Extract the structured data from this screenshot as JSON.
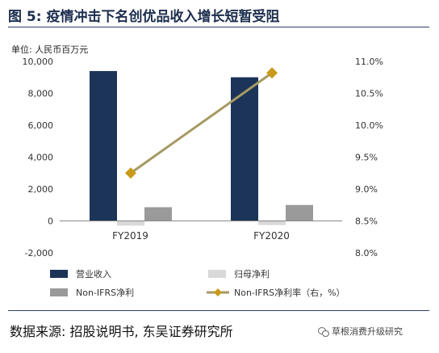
{
  "header": {
    "title": "图 5:  疫情冲击下名创优品收入增长短暂受阻",
    "unit": "单位:  人民币百万元"
  },
  "footer": {
    "source": "数据来源:  招股说明书,  东吴证券研究所",
    "watermark": "草根消费升级研究"
  },
  "colors": {
    "revenue": "#1c3458",
    "net_income": "#d9d9d9",
    "non_ifrs": "#9a9a9a",
    "margin_line": "#a69a63",
    "margin_marker": "#c99a1a",
    "axis": "#888888"
  },
  "chart_data": {
    "type": "bar",
    "categories": [
      "FY2019",
      "FY2020"
    ],
    "series": [
      {
        "name": "营业收入",
        "kind": "bar",
        "axis": "left",
        "values": [
          9395,
          9005
        ]
      },
      {
        "name": "归母净利",
        "kind": "bar",
        "axis": "left",
        "values": [
          -294,
          -260
        ]
      },
      {
        "name": "Non-IFRS净利",
        "kind": "bar",
        "axis": "left",
        "values": [
          860,
          1000
        ]
      },
      {
        "name": "Non-IFRS净利率（右，%）",
        "kind": "line",
        "axis": "right",
        "values": [
          9.25,
          10.82
        ]
      }
    ],
    "y_left": {
      "min": -2000,
      "max": 10000,
      "ticks": [
        -2000,
        0,
        2000,
        4000,
        6000,
        8000,
        10000
      ],
      "tick_labels": [
        "-2,000",
        "0",
        "2,000",
        "4,000",
        "6,000",
        "8,000",
        "10,000"
      ]
    },
    "y_right": {
      "min": 8.0,
      "max": 11.0,
      "ticks": [
        8.0,
        8.5,
        9.0,
        9.5,
        10.0,
        10.5,
        11.0
      ],
      "tick_labels": [
        "8.0%",
        "8.5%",
        "9.0%",
        "9.5%",
        "10.0%",
        "10.5%",
        "11.0%"
      ]
    },
    "legend_position": "bottom",
    "grid": false
  }
}
